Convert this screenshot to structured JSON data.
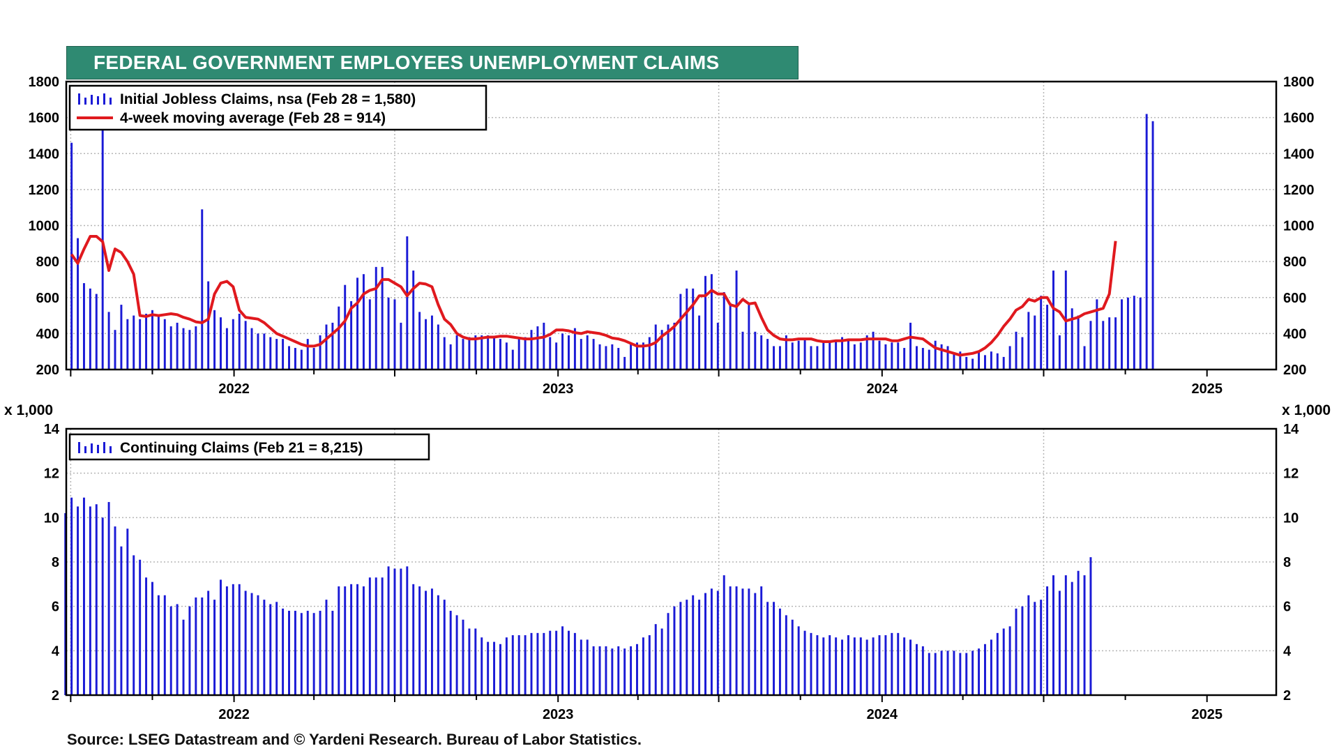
{
  "title": "FEDERAL GOVERNMENT EMPLOYEES UNEMPLOYMENT CLAIMS",
  "source": "Source: LSEG Datastream and © Yardeni Research. Bureau of Labor Statistics.",
  "colors": {
    "title_bg": "#2f8a72",
    "bars": "#1a1ad6",
    "moving_average": "#e0191e",
    "grid": "#b5b5b5"
  },
  "chart_data": [
    {
      "type": "bar",
      "panel": "top",
      "ylim": [
        200,
        1800
      ],
      "yticks": [
        200,
        400,
        600,
        800,
        1000,
        1200,
        1400,
        1600,
        1800
      ],
      "x_range": [
        "2021-07-02",
        "2025-02-28"
      ],
      "year_labels": [
        "2022",
        "2023",
        "2024",
        "2025"
      ],
      "grid": true,
      "legend_position": "top-left",
      "series": [
        {
          "name": "Initial Jobless Claims, nsa (Feb 28 = 1,580)",
          "kind": "bar",
          "values": [
            1460,
            930,
            680,
            650,
            620,
            1540,
            520,
            420,
            560,
            480,
            500,
            480,
            510,
            530,
            500,
            480,
            440,
            460,
            430,
            420,
            440,
            1090,
            690,
            530,
            490,
            430,
            480,
            510,
            470,
            430,
            400,
            400,
            380,
            370,
            370,
            330,
            320,
            310,
            370,
            320,
            390,
            450,
            460,
            550,
            670,
            580,
            710,
            730,
            590,
            770,
            770,
            600,
            590,
            460,
            940,
            750,
            520,
            480,
            500,
            450,
            380,
            340,
            390,
            370,
            380,
            390,
            390,
            390,
            380,
            370,
            350,
            310,
            370,
            380,
            420,
            440,
            460,
            380,
            350,
            400,
            390,
            430,
            370,
            390,
            370,
            340,
            330,
            340,
            320,
            270,
            350,
            350,
            350,
            380,
            450,
            420,
            450,
            460,
            620,
            650,
            650,
            500,
            720,
            730,
            460,
            630,
            570,
            750,
            410,
            560,
            410,
            390,
            370,
            330,
            330,
            390,
            350,
            360,
            370,
            330,
            330,
            360,
            360,
            360,
            380,
            370,
            340,
            350,
            390,
            410,
            360,
            340,
            350,
            350,
            320,
            460,
            330,
            320,
            310,
            360,
            340,
            330,
            290,
            300,
            270,
            260,
            300,
            280,
            300,
            290,
            270,
            330,
            410,
            380,
            520,
            500,
            610,
            560,
            750,
            390,
            750,
            540,
            500,
            330,
            470,
            590,
            470,
            490,
            490,
            590,
            600,
            610,
            600,
            1620,
            1580
          ]
        },
        {
          "name": "4-week moving average (Feb 28 = 914)",
          "kind": "line",
          "values": [
            840,
            790,
            870,
            940,
            940,
            910,
            750,
            870,
            850,
            800,
            730,
            500,
            495,
            505,
            500,
            505,
            510,
            505,
            490,
            480,
            465,
            460,
            480,
            620,
            680,
            690,
            660,
            530,
            490,
            485,
            480,
            460,
            430,
            400,
            385,
            370,
            355,
            340,
            330,
            330,
            340,
            370,
            400,
            430,
            470,
            540,
            570,
            620,
            640,
            650,
            700,
            700,
            680,
            660,
            610,
            650,
            680,
            675,
            660,
            560,
            480,
            450,
            400,
            380,
            370,
            370,
            375,
            380,
            380,
            385,
            385,
            380,
            375,
            370,
            370,
            375,
            380,
            395,
            420,
            420,
            415,
            405,
            400,
            410,
            405,
            400,
            390,
            375,
            370,
            360,
            345,
            330,
            330,
            335,
            350,
            385,
            410,
            440,
            480,
            520,
            560,
            610,
            610,
            640,
            620,
            620,
            560,
            550,
            590,
            565,
            570,
            490,
            420,
            390,
            370,
            365,
            365,
            370,
            370,
            370,
            360,
            355,
            355,
            360,
            360,
            365,
            365,
            365,
            370,
            370,
            370,
            370,
            360,
            360,
            370,
            380,
            375,
            370,
            345,
            320,
            310,
            300,
            290,
            280,
            285,
            290,
            300,
            320,
            350,
            390,
            440,
            480,
            530,
            550,
            590,
            580,
            600,
            600,
            540,
            520,
            470,
            480,
            490,
            510,
            520,
            530,
            540,
            620,
            914
          ]
        }
      ]
    },
    {
      "type": "bar",
      "panel": "bottom",
      "y_unit": "x 1,000",
      "ylim": [
        2,
        14
      ],
      "yticks": [
        2,
        4,
        6,
        8,
        10,
        12,
        14
      ],
      "x_range": [
        "2021-06-25",
        "2025-02-21"
      ],
      "year_labels": [
        "2022",
        "2023",
        "2024",
        "2025"
      ],
      "grid": true,
      "legend_position": "top-left",
      "series": [
        {
          "name": "Continuing Claims (Feb 21 = 8,215)",
          "kind": "bar",
          "values": [
            10.2,
            10.9,
            10.5,
            10.9,
            10.5,
            10.6,
            10.0,
            10.7,
            9.6,
            8.7,
            9.5,
            8.3,
            8.1,
            7.3,
            7.1,
            6.5,
            6.5,
            6.0,
            6.1,
            5.4,
            6.0,
            6.4,
            6.4,
            6.7,
            6.3,
            7.2,
            6.9,
            7.0,
            7.0,
            6.7,
            6.6,
            6.5,
            6.3,
            6.1,
            6.2,
            5.9,
            5.8,
            5.8,
            5.7,
            5.8,
            5.7,
            5.8,
            6.3,
            5.8,
            6.9,
            6.9,
            7.0,
            7.0,
            6.9,
            7.3,
            7.3,
            7.3,
            7.8,
            7.7,
            7.7,
            7.8,
            7.0,
            6.9,
            6.7,
            6.8,
            6.5,
            6.3,
            5.8,
            5.6,
            5.4,
            5.0,
            5.0,
            4.6,
            4.4,
            4.4,
            4.3,
            4.6,
            4.7,
            4.7,
            4.7,
            4.8,
            4.8,
            4.8,
            4.9,
            4.9,
            5.1,
            4.9,
            4.8,
            4.5,
            4.5,
            4.2,
            4.2,
            4.2,
            4.1,
            4.2,
            4.1,
            4.2,
            4.3,
            4.6,
            4.7,
            5.2,
            5.0,
            5.7,
            6.0,
            6.2,
            6.3,
            6.5,
            6.3,
            6.6,
            6.8,
            6.7,
            7.4,
            6.9,
            6.9,
            6.8,
            6.8,
            6.6,
            6.9,
            6.2,
            6.2,
            5.9,
            5.6,
            5.4,
            5.1,
            4.9,
            4.8,
            4.7,
            4.6,
            4.7,
            4.6,
            4.5,
            4.7,
            4.6,
            4.6,
            4.5,
            4.6,
            4.7,
            4.7,
            4.8,
            4.8,
            4.6,
            4.5,
            4.3,
            4.2,
            3.9,
            3.9,
            4.0,
            4.0,
            4.0,
            3.9,
            3.9,
            4.0,
            4.1,
            4.3,
            4.5,
            4.8,
            5.0,
            5.1,
            5.9,
            6.0,
            6.5,
            6.2,
            6.3,
            6.9,
            7.4,
            6.7,
            7.4,
            7.1,
            7.6,
            7.4,
            8.215
          ]
        }
      ]
    }
  ]
}
